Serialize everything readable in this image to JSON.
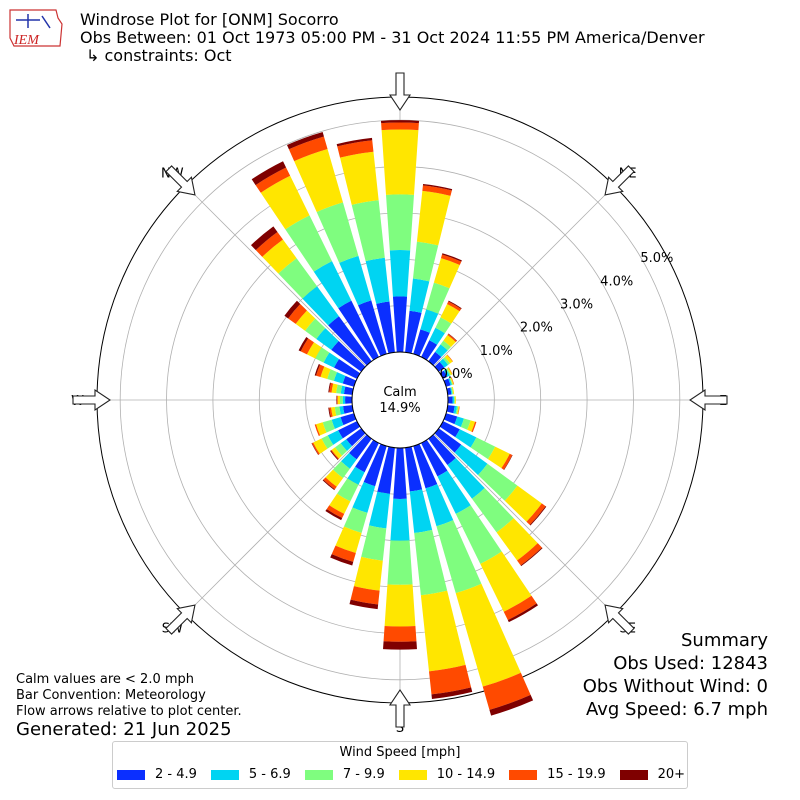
{
  "header": {
    "title": "Windrose Plot for [ONM] Socorro",
    "subtitle": "Obs Between: 01 Oct 1973 05:00 PM - 31 Oct 2024 11:55 PM America/Denver",
    "constraints": "↳ constraints: Oct",
    "logo_text": "IEM"
  },
  "center": {
    "label": "Calm",
    "value": "14.9%"
  },
  "notes": {
    "calm": "Calm values are < 2.0 mph",
    "bar": "Bar Convention: Meteorology",
    "flow": "Flow arrows relative to plot center.",
    "generated": "Generated: 21 Jun 2025"
  },
  "summary": {
    "title": "Summary",
    "obs_used": "Obs Used: 12843",
    "obs_without_wind": "Obs Without Wind: 0",
    "avg_speed": "Avg Speed: 6.7 mph"
  },
  "legend": {
    "title": "Wind Speed [mph]",
    "items": [
      {
        "label": "2 - 4.9",
        "color": "#0b2fff"
      },
      {
        "label": "5 - 6.9",
        "color": "#00d4f2"
      },
      {
        "label": "7 - 9.9",
        "color": "#7ffd7f"
      },
      {
        "label": "10 - 14.9",
        "color": "#ffe600"
      },
      {
        "label": "15 - 19.9",
        "color": "#ff4a00"
      },
      {
        "label": "20+",
        "color": "#7f0000"
      }
    ]
  },
  "chart_data": {
    "type": "windrose",
    "calm_percent": 14.9,
    "radial_ticks": [
      "0.0%",
      "1.0%",
      "2.0%",
      "3.0%",
      "4.0%",
      "5.0%"
    ],
    "radial_max": 5.5,
    "direction_labels": [
      "N",
      "NE",
      "E",
      "SE",
      "S",
      "SW",
      "W",
      "NW"
    ],
    "speed_bins": [
      "2 - 4.9",
      "5 - 6.9",
      "7 - 9.9",
      "10 - 14.9",
      "15 - 19.9",
      "20+"
    ],
    "directions_deg": [
      0,
      10,
      20,
      30,
      40,
      50,
      60,
      70,
      80,
      90,
      100,
      110,
      120,
      130,
      140,
      150,
      160,
      170,
      180,
      190,
      200,
      210,
      220,
      230,
      240,
      250,
      260,
      270,
      280,
      290,
      300,
      310,
      320,
      330,
      340,
      350
    ],
    "values_cumulative": [
      [
        1.2,
        2.2,
        3.4,
        4.8,
        4.95,
        5.0
      ],
      [
        0.9,
        1.6,
        2.4,
        3.5,
        3.62,
        3.65
      ],
      [
        0.55,
        1.0,
        1.6,
        2.15,
        2.23,
        2.26
      ],
      [
        0.4,
        0.7,
        0.95,
        1.27,
        1.33,
        1.35
      ],
      [
        0.25,
        0.45,
        0.55,
        0.7,
        0.73,
        0.74
      ],
      [
        0.15,
        0.25,
        0.3,
        0.37,
        0.38,
        0.38
      ],
      [
        0.1,
        0.16,
        0.19,
        0.22,
        0.23,
        0.23
      ],
      [
        0.1,
        0.13,
        0.15,
        0.17,
        0.18,
        0.18
      ],
      [
        0.08,
        0.1,
        0.12,
        0.14,
        0.14,
        0.14
      ],
      [
        0.1,
        0.13,
        0.15,
        0.17,
        0.17,
        0.17
      ],
      [
        0.15,
        0.2,
        0.23,
        0.25,
        0.26,
        0.26
      ],
      [
        0.25,
        0.4,
        0.55,
        0.65,
        0.68,
        0.68
      ],
      [
        0.4,
        0.8,
        1.25,
        1.6,
        1.66,
        1.67
      ],
      [
        0.6,
        1.3,
        2.1,
        2.75,
        2.85,
        2.87
      ],
      [
        0.7,
        1.6,
        2.5,
        3.25,
        3.38,
        3.4
      ],
      [
        0.8,
        1.7,
        2.9,
        4.05,
        4.25,
        4.3
      ],
      [
        0.95,
        1.8,
        3.3,
        5.4,
        5.92,
        6.05
      ],
      [
        0.95,
        1.85,
        3.2,
        4.85,
        5.35,
        5.45
      ],
      [
        1.1,
        2.0,
        2.95,
        3.85,
        4.18,
        4.35
      ],
      [
        1.0,
        1.75,
        2.45,
        3.1,
        3.4,
        3.5
      ],
      [
        0.9,
        1.5,
        1.95,
        2.4,
        2.6,
        2.68
      ],
      [
        0.7,
        1.0,
        1.4,
        1.7,
        1.8,
        1.85
      ],
      [
        0.55,
        0.8,
        1.05,
        1.28,
        1.35,
        1.37
      ],
      [
        0.4,
        0.55,
        0.7,
        0.79,
        0.81,
        0.83
      ],
      [
        0.45,
        0.7,
        0.85,
        1.05,
        1.08,
        1.09
      ],
      [
        0.3,
        0.5,
        0.7,
        0.85,
        0.88,
        0.88
      ],
      [
        0.2,
        0.28,
        0.38,
        0.46,
        0.5,
        0.52
      ],
      [
        0.15,
        0.2,
        0.26,
        0.31,
        0.33,
        0.34
      ],
      [
        0.18,
        0.25,
        0.35,
        0.45,
        0.5,
        0.52
      ],
      [
        0.25,
        0.45,
        0.6,
        0.75,
        0.85,
        0.88
      ],
      [
        0.55,
        0.8,
        1.0,
        1.2,
        1.35,
        1.4
      ],
      [
        0.8,
        1.2,
        1.5,
        1.75,
        1.95,
        2.05
      ],
      [
        1.2,
        2.0,
        2.75,
        3.25,
        3.45,
        3.6
      ],
      [
        1.35,
        2.3,
        3.4,
        4.35,
        4.55,
        4.7
      ],
      [
        1.2,
        2.2,
        3.4,
        4.6,
        4.88,
        4.98
      ],
      [
        1.1,
        2.05,
        3.3,
        4.35,
        4.6,
        4.65
      ]
    ]
  }
}
